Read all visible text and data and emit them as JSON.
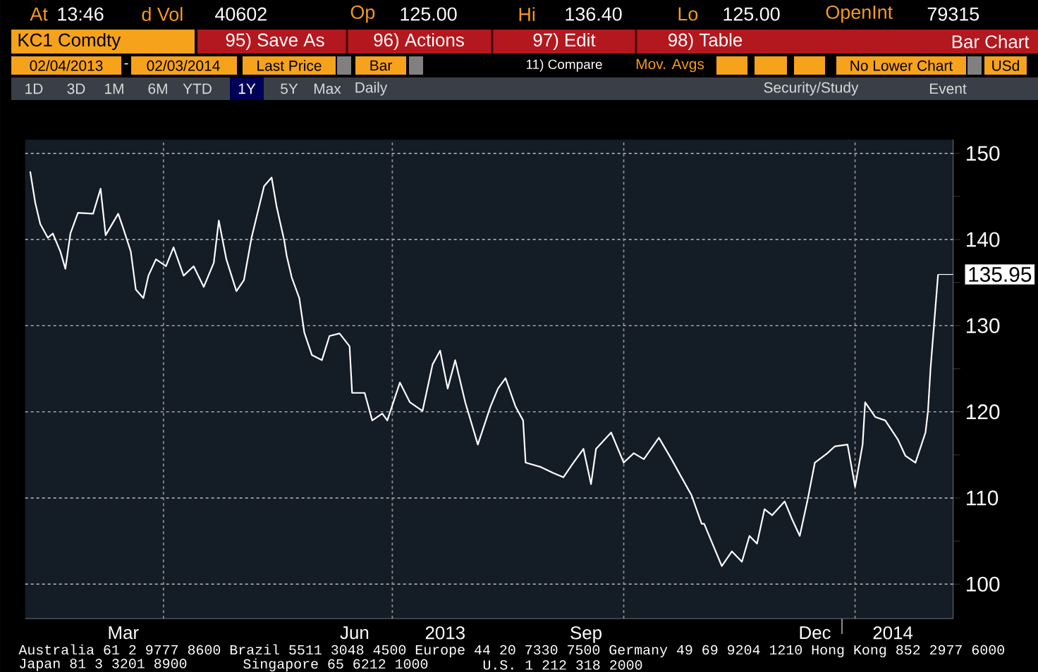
{
  "chart_data": {
    "type": "line",
    "title": "KC1 Comdty",
    "x": [
      "2013-02-07",
      "2013-02-09",
      "2013-02-11",
      "2013-02-14",
      "2013-02-16",
      "2013-02-19",
      "2013-02-21",
      "2013-02-23",
      "2013-02-26",
      "2013-03-04",
      "2013-03-07",
      "2013-03-09",
      "2013-03-14",
      "2013-03-16",
      "2013-03-19",
      "2013-03-21",
      "2013-03-24",
      "2013-03-26",
      "2013-03-29",
      "2013-04-02",
      "2013-04-05",
      "2013-04-09",
      "2013-04-13",
      "2013-04-17",
      "2013-04-21",
      "2013-04-23",
      "2013-04-26",
      "2013-04-30",
      "2013-05-03",
      "2013-05-06",
      "2013-05-11",
      "2013-05-14",
      "2013-05-16",
      "2013-05-19",
      "2013-05-20",
      "2013-05-22",
      "2013-05-25",
      "2013-05-27",
      "2013-05-30",
      "2013-06-03",
      "2013-06-06",
      "2013-06-10",
      "2013-06-14",
      "2013-06-15",
      "2013-06-20",
      "2013-06-23",
      "2013-06-27",
      "2013-06-29",
      "2013-07-04",
      "2013-07-08",
      "2013-07-13",
      "2013-07-17",
      "2013-07-20",
      "2013-07-23",
      "2013-07-26",
      "2013-07-30",
      "2013-08-04",
      "2013-08-09",
      "2013-08-12",
      "2013-08-15",
      "2013-08-19",
      "2013-08-22",
      "2013-08-23",
      "2013-08-29",
      "2013-09-03",
      "2013-09-07",
      "2013-09-11",
      "2013-09-15",
      "2013-09-18",
      "2013-09-20",
      "2013-09-26",
      "2013-10-01",
      "2013-10-05",
      "2013-10-09",
      "2013-10-15",
      "2013-10-20",
      "2013-10-24",
      "2013-10-28",
      "2013-11-01",
      "2013-11-02",
      "2013-11-06",
      "2013-11-09",
      "2013-11-13",
      "2013-11-17",
      "2013-11-20",
      "2013-11-23",
      "2013-11-26",
      "2013-11-29",
      "2013-12-04",
      "2013-12-07",
      "2013-12-10",
      "2013-12-13",
      "2013-12-16",
      "2013-12-21",
      "2013-12-24",
      "2013-12-29",
      "2014-01-01",
      "2014-01-04",
      "2014-01-05",
      "2014-01-09",
      "2014-01-13",
      "2014-01-18",
      "2014-01-21",
      "2014-01-25",
      "2014-01-29",
      "2014-01-30",
      "2014-01-31",
      "2014-02-03"
    ],
    "series": [
      {
        "color": "#ffffff",
        "values": [
          147.9,
          144.3,
          141.8,
          140.2,
          140.7,
          138.6,
          136.6,
          140.7,
          143.1,
          143.0,
          145.9,
          140.5,
          143.0,
          141.3,
          138.6,
          134.2,
          133.2,
          135.8,
          137.7,
          136.9,
          139.1,
          135.8,
          136.9,
          134.5,
          137.3,
          142.2,
          137.7,
          134.0,
          135.3,
          140.2,
          146.2,
          147.2,
          143.8,
          139.9,
          138.1,
          135.6,
          133.2,
          129.2,
          126.6,
          126.0,
          128.8,
          129.1,
          127.6,
          122.2,
          122.2,
          119.0,
          119.8,
          119.0,
          123.4,
          121.1,
          120.1,
          125.5,
          127.1,
          122.7,
          126.0,
          121.1,
          116.2,
          120.6,
          122.7,
          123.9,
          120.6,
          119.0,
          114.1,
          113.6,
          112.9,
          112.4,
          114.1,
          115.7,
          111.6,
          115.7,
          117.6,
          114.1,
          115.2,
          114.5,
          117.0,
          114.5,
          112.4,
          110.3,
          107.0,
          107.0,
          104.2,
          102.1,
          103.8,
          102.6,
          105.6,
          104.7,
          108.7,
          108.0,
          109.6,
          107.5,
          105.6,
          109.6,
          114.1,
          115.2,
          116.0,
          116.2,
          111.3,
          116.2,
          121.1,
          119.4,
          119.0,
          116.8,
          114.9,
          114.1,
          117.6,
          120.1,
          125.0,
          135.95
        ]
      }
    ],
    "xlim": [
      "2013-02-05",
      "2014-02-09"
    ],
    "xticks": [
      {
        "value": "2013-03-16",
        "label": "Mar"
      },
      {
        "value": "2013-06-16",
        "label": "Jun"
      },
      {
        "value": "2013-09-16",
        "label": "Sep"
      },
      {
        "value": "2013-12-16",
        "label": "Dec"
      },
      {
        "value": "2013-07-22",
        "label": "2013"
      },
      {
        "value": "2014-01-16",
        "label": "2014"
      }
    ],
    "ylim": [
      96,
      151.6
    ],
    "yticks": [
      100,
      {
        "value": 105,
        "label": null
      },
      110,
      {
        "value": 115,
        "label": null
      },
      120,
      {
        "value": 125,
        "label": null
      },
      130,
      {
        "value": 135,
        "label": null
      },
      140,
      {
        "value": 145,
        "label": null
      },
      150
    ],
    "grid": "y",
    "line_style": "solid",
    "marker": "none",
    "ref_lines": [
      {
        "axis": "x",
        "value": "2013-04-01",
        "color": "#8c8c8c",
        "line_style": "dotted"
      },
      {
        "axis": "x",
        "value": "2013-07-01",
        "color": "#8c8c8c",
        "line_style": "dotted"
      },
      {
        "axis": "x",
        "value": "2013-10-01",
        "color": "#8c8c8c",
        "line_style": "dotted"
      },
      {
        "axis": "x",
        "value": "2014-01-01",
        "color": "#8c8c8c",
        "line_style": "dotted"
      }
    ],
    "annotations": [
      "At",
      "13:46",
      "d Vol",
      "40602",
      "Op",
      "125.00",
      "Hi",
      "136.40",
      "Lo",
      "125.00",
      "OpenInt",
      "79315",
      "95) Save As",
      "96) Actions",
      "97) Edit",
      "98) Table",
      "Bar Chart",
      "02/04/2013",
      "-",
      "02/03/2014",
      "Last Price",
      "Bar",
      "11) Compare",
      "Mov. Avgs",
      "No Lower Chart",
      "USd",
      "1D",
      "3D",
      "1M",
      "6M",
      "YTD",
      "1Y",
      "5Y",
      "Max",
      "Daily",
      "Security/Study",
      "Event",
      "Australia 61 2 9777 8600 Brazil 5511 3048 4500 Europe 44 20 7330 7500 Germany 49 69 9204 1210 Hong Kong 852 2977 6000",
      "Japan 81 3 3201 8900",
      "Singapore 65 6212 1000",
      "U.S. 1 212 318 2000",
      {
        "text": "135.95",
        "x": "2014-02-03",
        "y": 135.95
      }
    ]
  }
}
